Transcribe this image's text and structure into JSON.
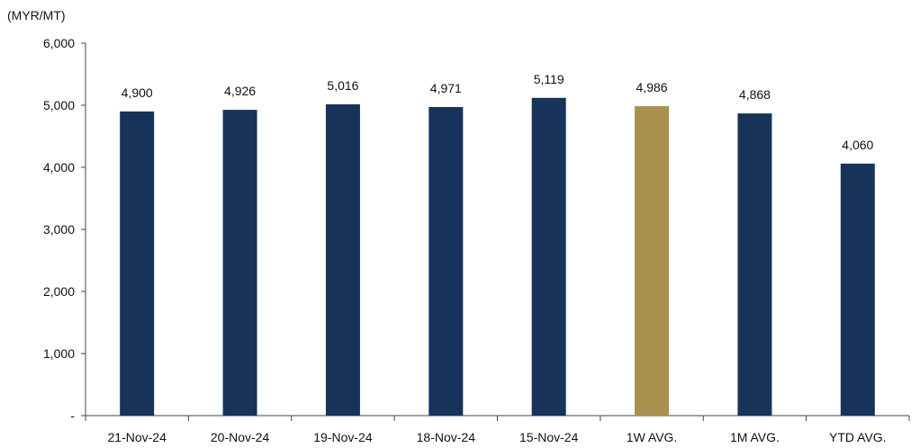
{
  "chart_data": {
    "type": "bar",
    "title": "",
    "xlabel": "",
    "ylabel": "(MYR/MT)",
    "ylim": [
      0,
      6000
    ],
    "yticks": [
      0,
      1000,
      2000,
      3000,
      4000,
      5000,
      6000
    ],
    "ytick_labels": [
      "-",
      "1,000",
      "2,000",
      "3,000",
      "4,000",
      "5,000",
      "6,000"
    ],
    "categories": [
      "21-Nov-24",
      "20-Nov-24",
      "19-Nov-24",
      "18-Nov-24",
      "15-Nov-24",
      "1W AVG.",
      "1M AVG.",
      "YTD AVG."
    ],
    "values": [
      4900,
      4926,
      5016,
      4971,
      5119,
      4986,
      4868,
      4060
    ],
    "data_labels": [
      "4,900",
      "4,926",
      "5,016",
      "4,971",
      "5,119",
      "4,986",
      "4,868",
      "4,060"
    ],
    "bar_colors": [
      "#18335a",
      "#18335a",
      "#18335a",
      "#18335a",
      "#18335a",
      "#a8914f",
      "#18335a",
      "#18335a"
    ],
    "grid": false,
    "legend": "none"
  }
}
